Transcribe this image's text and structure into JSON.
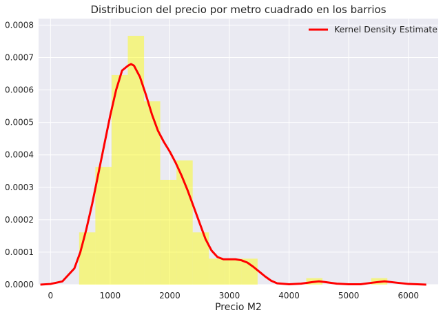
{
  "chart_data": {
    "type": "bar",
    "title": "Distribucion del precio por metro cuadrado en los barrios",
    "xlabel": "Precio M2",
    "ylabel": "",
    "xlim": [
      -200,
      6500
    ],
    "ylim": [
      0,
      0.00082
    ],
    "xticks": [
      0,
      1000,
      2000,
      3000,
      4000,
      5000,
      6000
    ],
    "yticks": [
      0.0,
      0.0001,
      0.0002,
      0.0003,
      0.0004,
      0.0005,
      0.0006,
      0.0007,
      0.0008
    ],
    "ytick_labels": [
      "0.0000",
      "0.0001",
      "0.0002",
      "0.0003",
      "0.0004",
      "0.0005",
      "0.0006",
      "0.0007",
      "0.0008"
    ],
    "grid": true,
    "legend_position": "top-right",
    "colors": {
      "background": "#eaeaf2",
      "grid": "#ffffff",
      "histogram": "#ffff00",
      "kde": "#ff0000"
    },
    "histogram": {
      "bin_width": 272,
      "bins": [
        {
          "x0": 480,
          "density": 0.000161
        },
        {
          "x0": 752,
          "density": 0.000363
        },
        {
          "x0": 1024,
          "density": 0.000646
        },
        {
          "x0": 1296,
          "density": 0.000767
        },
        {
          "x0": 1568,
          "density": 0.000565
        },
        {
          "x0": 1840,
          "density": 0.000323
        },
        {
          "x0": 2112,
          "density": 0.000383
        },
        {
          "x0": 2384,
          "density": 0.000161
        },
        {
          "x0": 2656,
          "density": 8e-05
        },
        {
          "x0": 2928,
          "density": 8e-05
        },
        {
          "x0": 3200,
          "density": 8e-05
        },
        {
          "x0": 3472,
          "density": 0.0
        },
        {
          "x0": 3744,
          "density": 0.0
        },
        {
          "x0": 4016,
          "density": 0.0
        },
        {
          "x0": 4288,
          "density": 2e-05
        },
        {
          "x0": 4560,
          "density": 0.0
        },
        {
          "x0": 4832,
          "density": 0.0
        },
        {
          "x0": 5104,
          "density": 0.0
        },
        {
          "x0": 5376,
          "density": 2e-05
        }
      ]
    },
    "series": [
      {
        "name": "Kernel Density Estimate",
        "x": [
          -170,
          0,
          200,
          400,
          500,
          600,
          700,
          800,
          900,
          1000,
          1100,
          1200,
          1300,
          1350,
          1400,
          1500,
          1600,
          1700,
          1800,
          1900,
          2000,
          2100,
          2200,
          2300,
          2400,
          2500,
          2600,
          2700,
          2800,
          2900,
          3000,
          3100,
          3200,
          3300,
          3400,
          3500,
          3600,
          3700,
          3800,
          4000,
          4200,
          4400,
          4500,
          4600,
          4800,
          5000,
          5200,
          5400,
          5600,
          5800,
          6000,
          6300
        ],
        "y": [
          0.0,
          2e-06,
          1e-05,
          5e-05,
          0.0001,
          0.00017,
          0.00025,
          0.00034,
          0.00043,
          0.00052,
          0.0006,
          0.00066,
          0.000675,
          0.00068,
          0.000675,
          0.00064,
          0.000585,
          0.000525,
          0.000475,
          0.00044,
          0.00041,
          0.000375,
          0.000335,
          0.00029,
          0.00024,
          0.00019,
          0.00014,
          0.000105,
          8.5e-05,
          7.8e-05,
          7.8e-05,
          7.8e-05,
          7.5e-05,
          6.8e-05,
          5.5e-05,
          4e-05,
          2.5e-05,
          1.2e-05,
          4e-06,
          1e-06,
          3e-06,
          8e-06,
          1e-05,
          8e-06,
          3e-06,
          1e-06,
          1e-06,
          6e-06,
          1e-05,
          6e-06,
          2e-06,
          0.0
        ]
      }
    ]
  }
}
